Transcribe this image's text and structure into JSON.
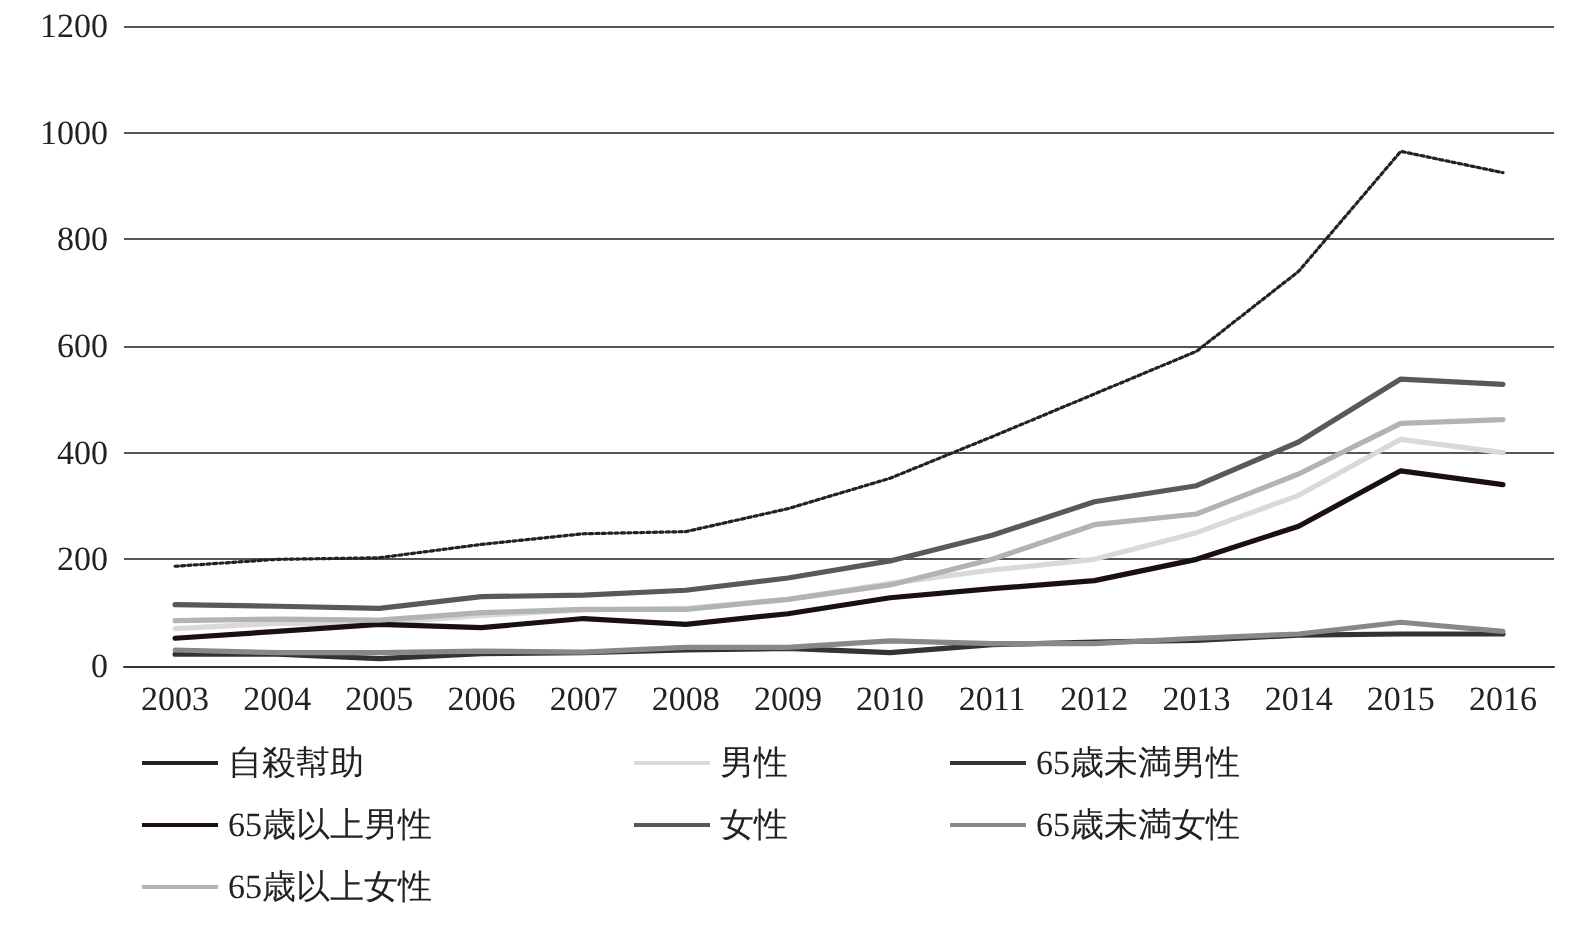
{
  "chart_data": {
    "type": "line",
    "categories": [
      "2003",
      "2004",
      "2005",
      "2006",
      "2007",
      "2008",
      "2009",
      "2010",
      "2011",
      "2012",
      "2013",
      "2014",
      "2015",
      "2016"
    ],
    "series": [
      {
        "name": "自殺幇助",
        "color": "#222222",
        "line_style": "dotted",
        "values": [
          187,
          200,
          203,
          228,
          248,
          252,
          295,
          352,
          430,
          510,
          590,
          740,
          965,
          925
        ]
      },
      {
        "name": "男性",
        "color": "#d9d9d9",
        "values": [
          70,
          80,
          80,
          95,
          105,
          108,
          125,
          155,
          180,
          200,
          250,
          320,
          425,
          400
        ]
      },
      {
        "name": "65歳未満男性",
        "color": "#333333",
        "values": [
          22,
          22,
          14,
          23,
          25,
          30,
          33,
          25,
          40,
          45,
          48,
          58,
          60,
          60
        ]
      },
      {
        "name": "65歳以上男性",
        "color": "#1a1010",
        "values": [
          52,
          65,
          78,
          72,
          89,
          78,
          98,
          128,
          145,
          160,
          200,
          262,
          366,
          340
        ]
      },
      {
        "name": "女性",
        "color": "#595959",
        "values": [
          115,
          112,
          108,
          130,
          133,
          142,
          165,
          197,
          245,
          308,
          338,
          420,
          538,
          528
        ]
      },
      {
        "name": "65歳未満女性",
        "color": "#888888",
        "values": [
          30,
          25,
          25,
          28,
          26,
          35,
          35,
          47,
          42,
          42,
          52,
          60,
          82,
          65
        ]
      },
      {
        "name": "65歳以上女性",
        "color": "#b3b3b3",
        "values": [
          85,
          88,
          86,
          100,
          106,
          106,
          125,
          152,
          200,
          265,
          285,
          360,
          455,
          462
        ]
      }
    ],
    "ylim": [
      0,
      1200
    ],
    "yticks": [
      0,
      200,
      400,
      600,
      800,
      1000,
      1200
    ],
    "grid": "y",
    "legend": "bottom",
    "marker": "none",
    "line_style": "solid"
  }
}
